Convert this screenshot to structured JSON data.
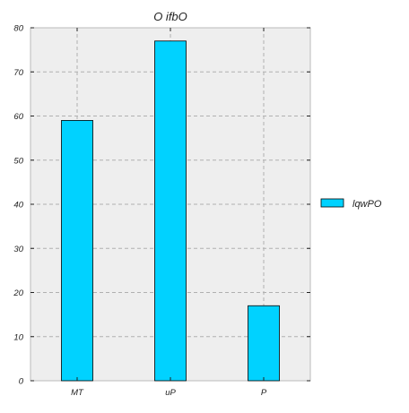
{
  "chart_data": {
    "type": "bar",
    "title": "O ifbO",
    "xlabel": "",
    "ylabel": "",
    "categories": [
      "MT",
      "uP",
      "P"
    ],
    "series": [
      {
        "name": "lqwPO",
        "values": [
          59,
          77,
          17
        ],
        "color": "#00d2ff"
      }
    ],
    "ylim": [
      0,
      80
    ],
    "yticks": [
      0,
      10,
      20,
      30,
      40,
      50,
      60,
      70,
      80
    ],
    "grid": true,
    "legend_position": "right",
    "plot_background": "#eeeeee",
    "grid_color": "#b0b0b0",
    "bar_edge_color": "#000000"
  }
}
